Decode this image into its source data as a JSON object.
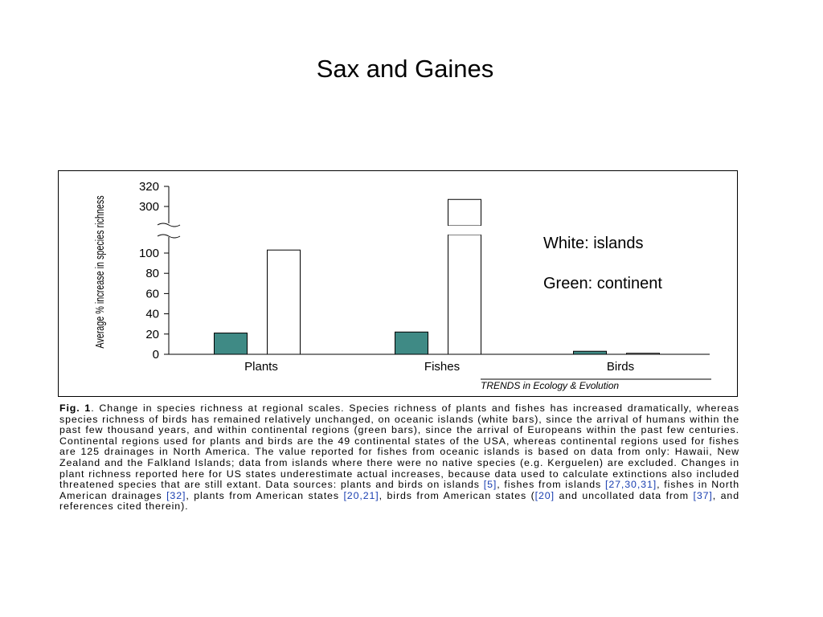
{
  "slide": {
    "title": "Sax and Gaines"
  },
  "legend_notes": {
    "white": "White: islands",
    "green": "Green: continent"
  },
  "colors": {
    "continent": "#3f8a85",
    "islands": "#ffffff",
    "axis": "#000000"
  },
  "chart_data": {
    "type": "bar",
    "categories": [
      "Plants",
      "Fishes",
      "Birds"
    ],
    "series": [
      {
        "key": "continent",
        "values": [
          21,
          22,
          3
        ]
      },
      {
        "key": "islands",
        "values": [
          103,
          307,
          1
        ]
      }
    ],
    "ylabel": "Average % increase in species richness",
    "yticks_lower": [
      0,
      20,
      40,
      60,
      80,
      100
    ],
    "yticks_upper": [
      300,
      320
    ],
    "y_axis_break": [
      110,
      290
    ],
    "ylim": [
      0,
      320
    ],
    "source": "TRENDS in Ecology & Evolution"
  },
  "caption": {
    "fig_label": "Fig. 1",
    "text1": ". Change in species richness at regional scales. Species richness of plants and fishes has increased dramatically, whereas species richness of birds has remained relatively unchanged, on oceanic islands (white bars), since the arrival of humans within the past few thousand years, and within continental regions (green bars), since the arrival of Europeans within the past few centuries. Continental regions used for plants and birds are the 49 continental states of the USA, whereas continental regions used for fishes are 125 drainages in North America. The value reported for fishes from oceanic islands is based on data from only: Hawaii, New Zealand and the Falkland Islands; data from islands where there were no native species (e.g. Kerguelen) are excluded. Changes in plant richness reported here for US states underestimate actual increases, because data used to calculate extinctions also included threatened species that are still extant. Data sources: plants and birds on islands ",
    "ref1": "[5]",
    "text2": ", fishes from islands ",
    "ref2": "[27,30,31]",
    "text3": ", fishes in North American drainages ",
    "ref3": "[32]",
    "text4": ", plants from American states ",
    "ref4": "[20,21]",
    "text5": ", birds from American states (",
    "ref5": "[20]",
    "text6": " and uncollated data from ",
    "ref6": "[37]",
    "text7": ", and references cited therein)."
  }
}
